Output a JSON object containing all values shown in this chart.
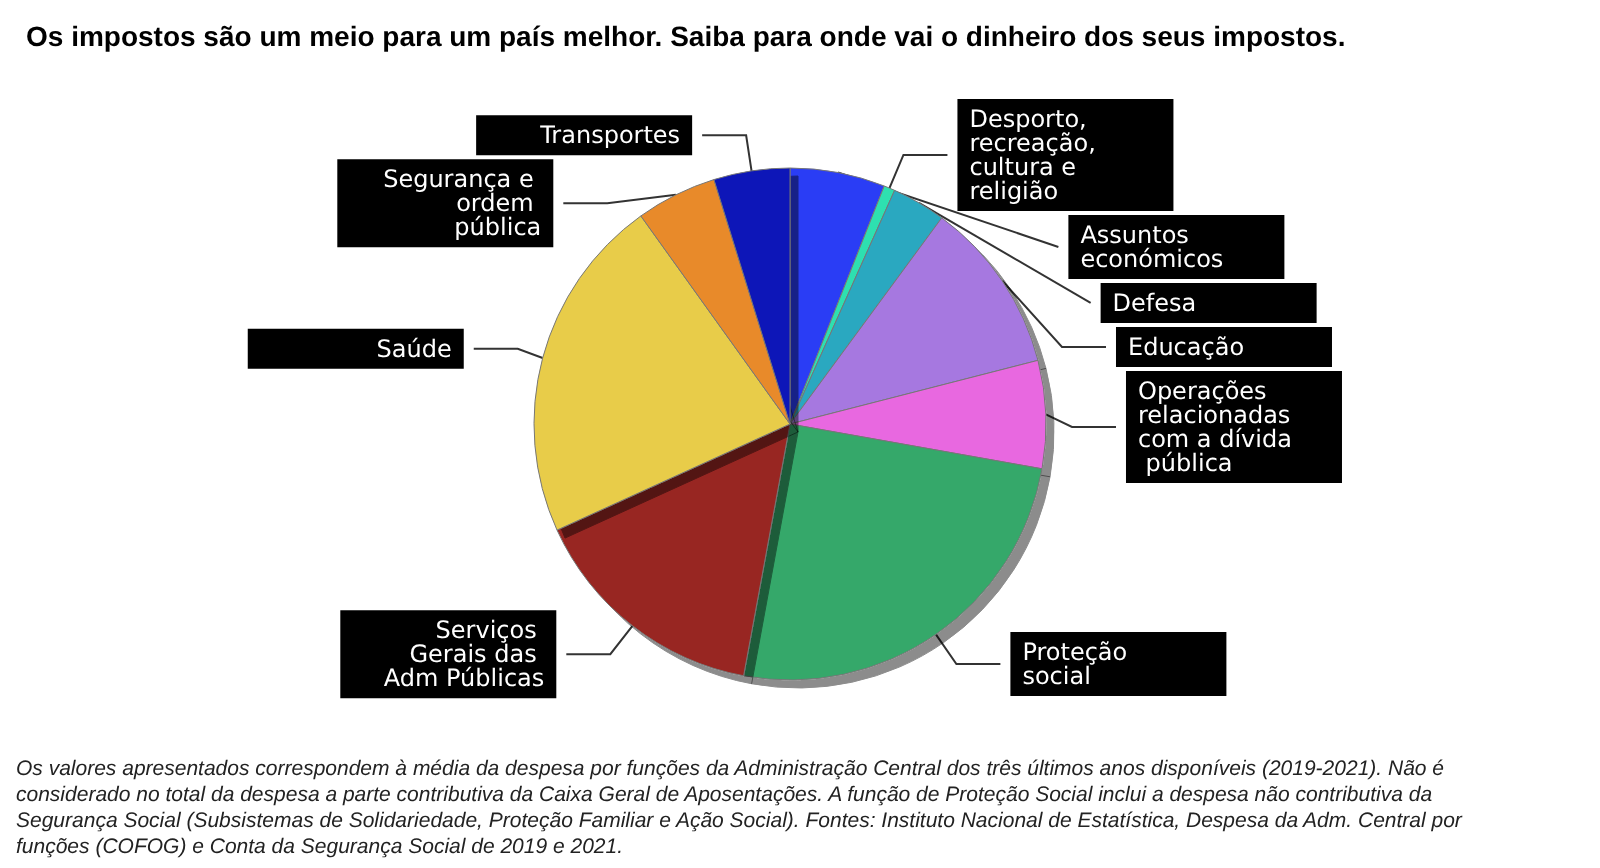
{
  "chart_data": {
    "type": "pie",
    "title": "Os impostos são um meio para um país melhor. Saiba para onde vai o dinheiro dos seus impostos.",
    "categories": [
      "Assuntos económicos",
      "Desporto, recreação, cultura e religião",
      "Defesa",
      "Educação",
      "Operações relacionadas com a dívida pública",
      "Proteção social",
      "Serviços Gerais das Adm Públicas",
      "Saúde",
      "Segurança e ordem pública",
      "Transportes"
    ],
    "values": [
      6.0,
      0.7,
      3.4,
      10.9,
      6.8,
      25.1,
      15.3,
      21.9,
      5.1,
      4.8
    ],
    "colors": [
      "#2a3cf5",
      "#2ee0b0",
      "#2aa8c0",
      "#a678e0",
      "#e868e0",
      "#34a86a",
      "#982620",
      "#e8cc48",
      "#e88a2a",
      "#0a14b8"
    ],
    "legend": false,
    "annotations": [
      "Os valores apresentados correspondem à média da despesa por funções da Administração Central dos três últimos anos disponíveis (2019-2021). Não é considerado no total da despesa a parte contributiva da Caixa Geral de Aposentações. A função de Proteção Social inclui a despesa não contributiva da Segurança Social (Subsistemas de Solidariedade, Proteção Familiar e Ação Social). Fontes: Instituto Nacional de Estatística, Despesa da Adm. Central por funções (COFOG) e Conta da Segurança Social de 2019 e 2021."
    ]
  }
}
